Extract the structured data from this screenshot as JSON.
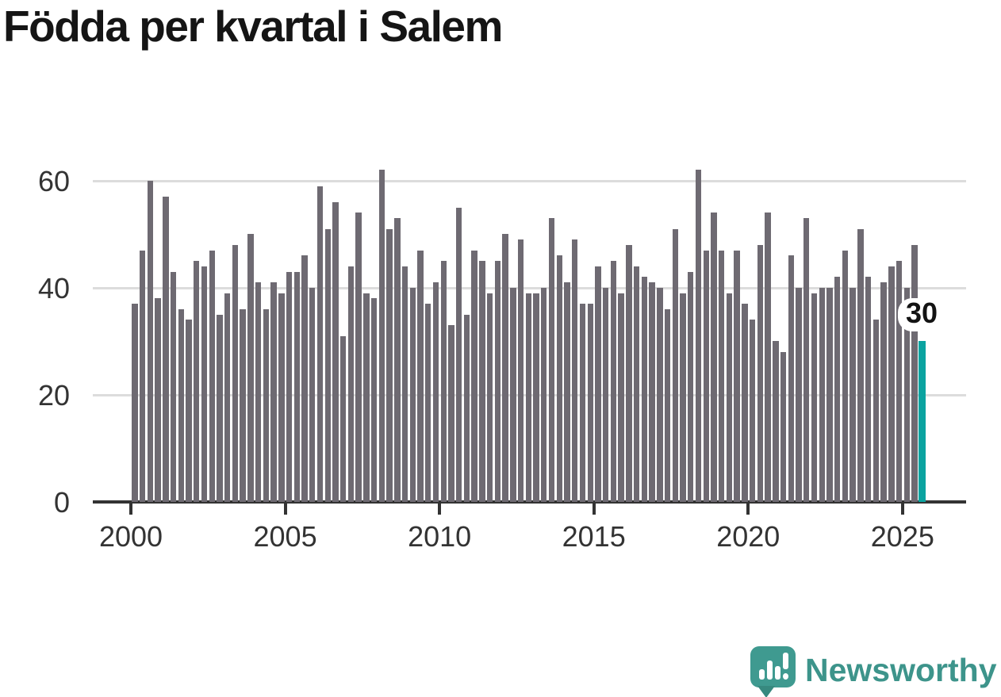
{
  "title": "Födda per kvartal i Salem",
  "chart_data": {
    "type": "bar",
    "title": "Födda per kvartal i Salem",
    "x_unit": "quarter",
    "start_quarter": "2000-Q1",
    "end_quarter": "2025-Q3",
    "values": [
      37,
      47,
      60,
      38,
      57,
      43,
      36,
      34,
      45,
      44,
      47,
      35,
      39,
      48,
      36,
      50,
      41,
      36,
      41,
      39,
      43,
      43,
      46,
      40,
      59,
      51,
      56,
      31,
      44,
      54,
      39,
      38,
      62,
      51,
      53,
      44,
      40,
      47,
      37,
      41,
      45,
      33,
      55,
      35,
      47,
      45,
      39,
      45,
      50,
      40,
      49,
      39,
      39,
      40,
      53,
      46,
      41,
      49,
      37,
      37,
      44,
      40,
      45,
      39,
      48,
      44,
      42,
      41,
      40,
      36,
      51,
      39,
      43,
      62,
      47,
      54,
      47,
      39,
      47,
      37,
      34,
      48,
      54,
      30,
      28,
      46,
      40,
      53,
      39,
      40,
      40,
      42,
      47,
      40,
      51,
      42,
      34,
      41,
      44,
      45,
      40,
      48,
      30
    ],
    "x_ticks": [
      {
        "label": "2000",
        "quarter_index": 0
      },
      {
        "label": "2005",
        "quarter_index": 20
      },
      {
        "label": "2010",
        "quarter_index": 40
      },
      {
        "label": "2015",
        "quarter_index": 60
      },
      {
        "label": "2020",
        "quarter_index": 80
      },
      {
        "label": "2025",
        "quarter_index": 100
      }
    ],
    "y_ticks": [
      0,
      20,
      40,
      60
    ],
    "ylim": [
      0,
      65
    ],
    "grid": true,
    "legend": null,
    "bar_color": "#6e6a72",
    "grid_color": "#dcdcdc",
    "axis_color": "#333333",
    "tick_label_color": "#333333",
    "highlight": {
      "quarter_index": 102,
      "quarter": "2025-Q3",
      "value": 30,
      "label": "30",
      "color": "#0ba3a0"
    }
  },
  "footer": {
    "brand": "Newsworthy",
    "brand_color": "#3d948b",
    "logo_icon": "speech-bubble-bar-chart-icon"
  }
}
